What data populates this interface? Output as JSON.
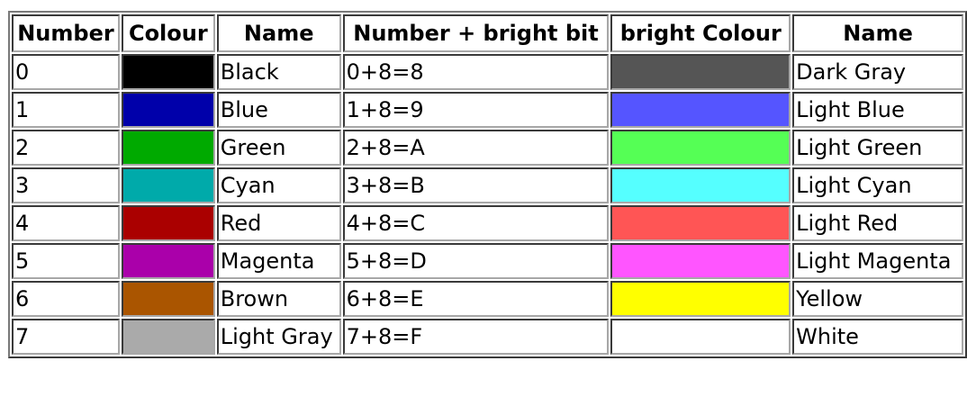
{
  "table": {
    "headers": [
      "Number",
      "Colour",
      "Name",
      "Number + bright bit",
      "bright Colour",
      "Name"
    ],
    "rows": [
      {
        "number": "0",
        "colour": "#000000",
        "name": "Black",
        "bright_number": "0+8=8",
        "bright_colour": "#555555",
        "bright_name": "Dark Gray"
      },
      {
        "number": "1",
        "colour": "#0000AA",
        "name": "Blue",
        "bright_number": "1+8=9",
        "bright_colour": "#5555FF",
        "bright_name": "Light Blue"
      },
      {
        "number": "2",
        "colour": "#00AA00",
        "name": "Green",
        "bright_number": "2+8=A",
        "bright_colour": "#55FF55",
        "bright_name": "Light Green"
      },
      {
        "number": "3",
        "colour": "#00AAAA",
        "name": "Cyan",
        "bright_number": "3+8=B",
        "bright_colour": "#55FFFF",
        "bright_name": "Light Cyan"
      },
      {
        "number": "4",
        "colour": "#AA0000",
        "name": "Red",
        "bright_number": "4+8=C",
        "bright_colour": "#FF5555",
        "bright_name": "Light Red"
      },
      {
        "number": "5",
        "colour": "#AA00AA",
        "name": "Magenta",
        "bright_number": "5+8=D",
        "bright_colour": "#FF55FF",
        "bright_name": "Light Magenta"
      },
      {
        "number": "6",
        "colour": "#AA5500",
        "name": "Brown",
        "bright_number": "6+8=E",
        "bright_colour": "#FFFF00",
        "bright_name": "Yellow"
      },
      {
        "number": "7",
        "colour": "#AAAAAA",
        "name": "Light Gray",
        "bright_number": "7+8=F",
        "bright_colour": "#FFFFFF",
        "bright_name": "White"
      }
    ]
  }
}
